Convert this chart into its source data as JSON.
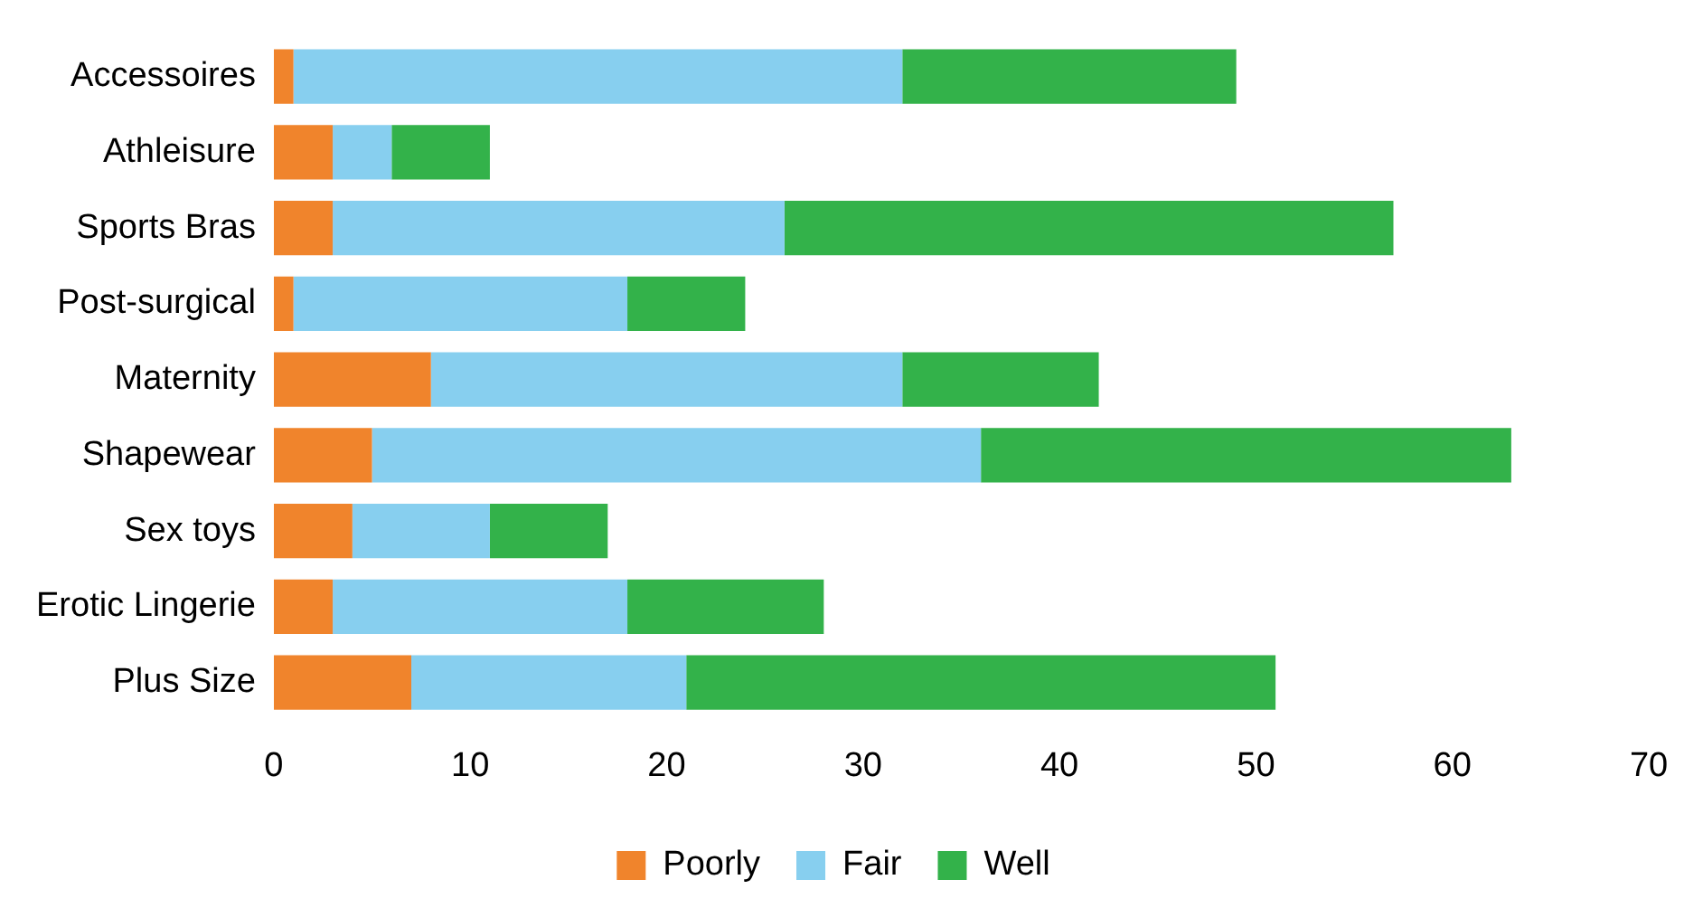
{
  "chart_data": {
    "type": "bar",
    "orientation": "horizontal",
    "stacked": true,
    "categories": [
      "Accessoires",
      "Athleisure",
      "Sports Bras",
      "Post-surgical",
      "Maternity",
      "Shapewear",
      "Sex toys",
      "Erotic Lingerie",
      "Plus Size"
    ],
    "series": [
      {
        "name": "Poorly",
        "color": "#f0842c",
        "values": [
          1,
          3,
          3,
          1,
          8,
          5,
          4,
          3,
          7
        ]
      },
      {
        "name": "Fair",
        "color": "#87cfef",
        "values": [
          31,
          3,
          23,
          17,
          24,
          31,
          7,
          15,
          14
        ]
      },
      {
        "name": "Well",
        "color": "#33b24a",
        "values": [
          17,
          5,
          31,
          6,
          10,
          27,
          6,
          10,
          30
        ]
      }
    ],
    "xlim": [
      0,
      70
    ],
    "xticks": [
      0,
      10,
      20,
      30,
      40,
      50,
      60,
      70
    ],
    "grid": false,
    "legend": "bottom"
  }
}
